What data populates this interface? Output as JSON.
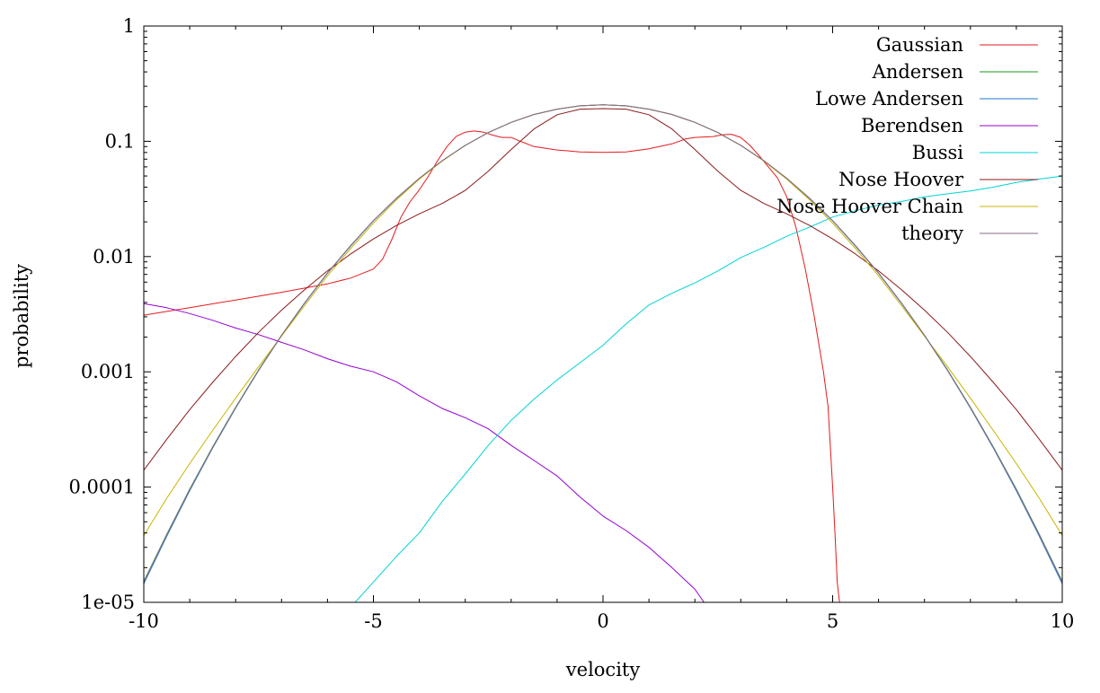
{
  "chart_data": {
    "type": "line",
    "xlabel": "velocity",
    "ylabel": "probability",
    "xlim": [
      -10,
      10
    ],
    "ylim": [
      1e-05,
      1
    ],
    "yscale": "log",
    "grid": false,
    "legend_position": "top-right",
    "x_ticks": [
      "-10",
      "-5",
      "0",
      "5",
      "10"
    ],
    "y_ticks": [
      "1e-05",
      "0.0001",
      "0.001",
      "0.01",
      "0.1",
      "1"
    ],
    "series": [
      {
        "name": "Gaussian",
        "color": "#e41a1c",
        "x": [
          -10,
          -9,
          -8,
          -7,
          -6,
          -5.5,
          -5,
          -4.8,
          -4.6,
          -4.4,
          -4.2,
          -4,
          -3.8,
          -3.6,
          -3.4,
          -3.2,
          -3,
          -2.8,
          -2.6,
          -2.4,
          -2.2,
          -2,
          -1.8,
          -1.5,
          -1,
          -0.5,
          0,
          0.5,
          1,
          1.5,
          1.8,
          2,
          2.2,
          2.4,
          2.6,
          2.8,
          3,
          3.2,
          3.4,
          3.6,
          3.8,
          4,
          4.2,
          4.4,
          4.6,
          4.8,
          4.9,
          5,
          5.05,
          5.1,
          5.15
        ],
        "y": [
          0.0031,
          0.0036,
          0.0042,
          0.0049,
          0.0058,
          0.0065,
          0.0078,
          0.0095,
          0.014,
          0.022,
          0.03,
          0.038,
          0.05,
          0.068,
          0.09,
          0.11,
          0.12,
          0.123,
          0.12,
          0.113,
          0.108,
          0.108,
          0.1,
          0.09,
          0.084,
          0.081,
          0.08,
          0.081,
          0.086,
          0.095,
          0.105,
          0.108,
          0.109,
          0.11,
          0.114,
          0.115,
          0.108,
          0.092,
          0.075,
          0.06,
          0.048,
          0.033,
          0.018,
          0.008,
          0.003,
          0.001,
          0.0005,
          0.0001,
          4e-05,
          1.5e-05,
          1e-05
        ]
      },
      {
        "name": "Andersen",
        "color": "#1a9a1a",
        "x": [
          -10,
          -9.5,
          -9,
          -8.5,
          -8,
          -7.5,
          -7,
          -6.5,
          -6,
          -5.5,
          -5,
          -4.5,
          -4,
          -3.5,
          -3,
          -2.5,
          -2,
          -1.5,
          -1,
          -0.5,
          0,
          0.5,
          1,
          1.5,
          2,
          2.5,
          3,
          3.5,
          4,
          4.5,
          5,
          5.5,
          6,
          6.5,
          7,
          7.5,
          8,
          8.5,
          9,
          9.5,
          10
        ],
        "y": [
          1.52e-05,
          3.9e-05,
          9.6e-05,
          0.000223,
          0.000493,
          0.00104,
          0.00208,
          0.00396,
          0.0072,
          0.0124,
          0.0205,
          0.032,
          0.0478,
          0.068,
          0.0922,
          0.119,
          0.146,
          0.171,
          0.19,
          0.203,
          0.207,
          0.203,
          0.19,
          0.171,
          0.146,
          0.119,
          0.0922,
          0.068,
          0.0478,
          0.032,
          0.0205,
          0.0124,
          0.0072,
          0.00396,
          0.00208,
          0.00104,
          0.000493,
          0.000223,
          9.6e-05,
          3.9e-05,
          1.52e-05
        ]
      },
      {
        "name": "Lowe Andersen",
        "color": "#1f78d1",
        "x": [
          -10,
          -9.5,
          -9,
          -8.5,
          -8,
          -7.5,
          -7,
          -6.5,
          -6,
          -5.5,
          -5,
          -4.5,
          -4,
          -3.5,
          -3,
          -2.5,
          -2,
          -1.5,
          -1,
          -0.5,
          0,
          0.5,
          1,
          1.5,
          2,
          2.5,
          3,
          3.5,
          4,
          4.5,
          5,
          5.5,
          6,
          6.5,
          7,
          7.5,
          8,
          8.5,
          9,
          9.5,
          10
        ],
        "y": [
          1.45e-05,
          3.75e-05,
          9.3e-05,
          0.000218,
          0.000485,
          0.00103,
          0.00206,
          0.00393,
          0.00716,
          0.0123,
          0.0204,
          0.0319,
          0.0477,
          0.0679,
          0.0921,
          0.119,
          0.146,
          0.171,
          0.19,
          0.203,
          0.207,
          0.203,
          0.19,
          0.171,
          0.146,
          0.119,
          0.0921,
          0.0679,
          0.0477,
          0.0319,
          0.0204,
          0.0123,
          0.00716,
          0.00393,
          0.00206,
          0.00103,
          0.000485,
          0.000218,
          9.3e-05,
          3.75e-05,
          1.45e-05
        ]
      },
      {
        "name": "Berendsen",
        "color": "#9400d3",
        "x": [
          -10,
          -9.5,
          -9,
          -8.5,
          -8,
          -7.5,
          -7,
          -6.5,
          -6,
          -5.5,
          -5,
          -4.5,
          -4,
          -3.5,
          -3,
          -2.5,
          -2,
          -1.5,
          -1,
          -0.5,
          0,
          0.5,
          1,
          1.5,
          2,
          2.2
        ],
        "y": [
          0.0039,
          0.0036,
          0.0032,
          0.0028,
          0.0024,
          0.0021,
          0.0018,
          0.00155,
          0.0013,
          0.00112,
          0.001,
          0.00082,
          0.00062,
          0.00048,
          0.0004,
          0.00032,
          0.00023,
          0.00017,
          0.000125,
          8.2e-05,
          5.6e-05,
          4.2e-05,
          3e-05,
          2e-05,
          1.3e-05,
          1e-05
        ]
      },
      {
        "name": "Bussi",
        "color": "#00d4d4",
        "x": [
          -5.4,
          -5,
          -4.5,
          -4,
          -3.5,
          -3,
          -2.5,
          -2,
          -1.5,
          -1,
          -0.5,
          0,
          0.5,
          1,
          1.5,
          2,
          2.5,
          3,
          3.5,
          4,
          4.5,
          5,
          5.5,
          6,
          6.5,
          7,
          7.5,
          8,
          8.5,
          9,
          9.5,
          10
        ],
        "y": [
          1e-05,
          1.5e-05,
          2.5e-05,
          4e-05,
          7.5e-05,
          0.00013,
          0.00023,
          0.00038,
          0.00058,
          0.00085,
          0.0012,
          0.0017,
          0.0026,
          0.0038,
          0.0048,
          0.0059,
          0.0075,
          0.0098,
          0.012,
          0.015,
          0.018,
          0.022,
          0.025,
          0.028,
          0.03,
          0.033,
          0.035,
          0.037,
          0.04,
          0.044,
          0.047,
          0.05
        ]
      },
      {
        "name": "Nose Hoover",
        "color": "#8b1a1a",
        "x": [
          -10,
          -9.5,
          -9,
          -8.5,
          -8,
          -7.5,
          -7,
          -6.5,
          -6,
          -5.5,
          -5,
          -4.5,
          -4,
          -3.5,
          -3,
          -2.5,
          -2,
          -1.5,
          -1,
          -0.5,
          0,
          0.5,
          1,
          1.5,
          2,
          2.5,
          3,
          3.5,
          4,
          4.5,
          5,
          5.5,
          6,
          6.5,
          7,
          7.5,
          8,
          8.5,
          9,
          9.5,
          10
        ],
        "y": [
          0.00014,
          0.00026,
          0.00047,
          0.00081,
          0.00136,
          0.0022,
          0.00343,
          0.00516,
          0.0075,
          0.0105,
          0.0142,
          0.0186,
          0.0235,
          0.0289,
          0.0375,
          0.055,
          0.085,
          0.128,
          0.17,
          0.19,
          0.192,
          0.19,
          0.17,
          0.128,
          0.085,
          0.055,
          0.0375,
          0.0289,
          0.0235,
          0.0186,
          0.0142,
          0.0105,
          0.0075,
          0.00516,
          0.00343,
          0.0022,
          0.00136,
          0.00081,
          0.00047,
          0.00026,
          0.00014
        ]
      },
      {
        "name": "Nose Hoover Chain",
        "color": "#c8b400",
        "x": [
          -10,
          -9.5,
          -9,
          -8.5,
          -8,
          -7.5,
          -7,
          -6.5,
          -6,
          -5.5,
          -5,
          -4.5,
          -4,
          -3.5,
          -3,
          -2.5,
          -2,
          -1.5,
          -1,
          -0.5,
          0,
          0.5,
          1,
          1.5,
          2,
          2.5,
          3,
          3.5,
          4,
          4.5,
          5,
          5.5,
          6,
          6.5,
          7,
          7.5,
          8,
          8.5,
          9,
          9.5,
          10
        ],
        "y": [
          3.8e-05,
          8e-05,
          0.00016,
          0.00031,
          0.00059,
          0.00111,
          0.00204,
          0.00375,
          0.0068,
          0.0117,
          0.0195,
          0.031,
          0.047,
          0.0675,
          0.0922,
          0.119,
          0.146,
          0.171,
          0.19,
          0.203,
          0.207,
          0.203,
          0.19,
          0.171,
          0.146,
          0.119,
          0.0922,
          0.0675,
          0.047,
          0.031,
          0.0195,
          0.0117,
          0.0068,
          0.00375,
          0.00204,
          0.00111,
          0.00059,
          0.00031,
          0.00016,
          8e-05,
          3.8e-05
        ]
      },
      {
        "name": "theory",
        "color": "#8a6a8a",
        "x": [
          -10,
          -9.5,
          -9,
          -8.5,
          -8,
          -7.5,
          -7,
          -6.5,
          -6,
          -5.5,
          -5,
          -4.5,
          -4,
          -3.5,
          -3,
          -2.5,
          -2,
          -1.5,
          -1,
          -0.5,
          0,
          0.5,
          1,
          1.5,
          2,
          2.5,
          3,
          3.5,
          4,
          4.5,
          5,
          5.5,
          6,
          6.5,
          7,
          7.5,
          8,
          8.5,
          9,
          9.5,
          10
        ],
        "y": [
          1.5e-05,
          3.85e-05,
          9.5e-05,
          0.000221,
          0.00049,
          0.00103,
          0.00207,
          0.00395,
          0.00718,
          0.0124,
          0.0205,
          0.032,
          0.0478,
          0.068,
          0.0922,
          0.119,
          0.146,
          0.171,
          0.19,
          0.203,
          0.207,
          0.203,
          0.19,
          0.171,
          0.146,
          0.119,
          0.0922,
          0.068,
          0.0478,
          0.032,
          0.0205,
          0.0124,
          0.00718,
          0.00395,
          0.00207,
          0.00103,
          0.00049,
          0.000221,
          9.5e-05,
          3.85e-05,
          1.5e-05
        ]
      }
    ]
  }
}
